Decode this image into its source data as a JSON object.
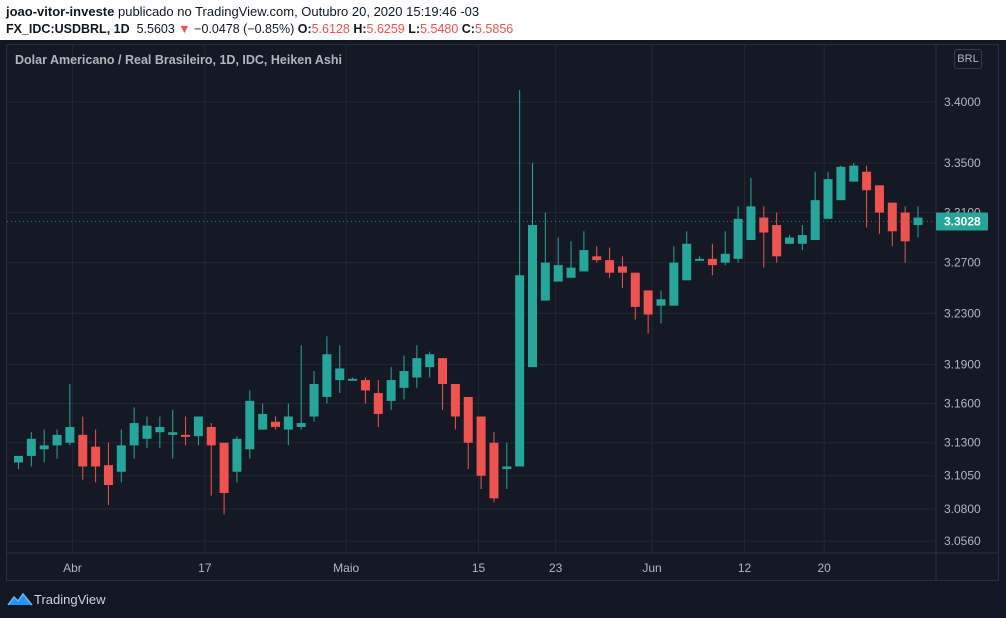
{
  "header": {
    "author": "joao-vitor-investe",
    "published_text": "publicado no TradingView.com, Outubro 20, 2020 15:19:46 -03",
    "symbol": "FX_IDC:USDBRL, 1D",
    "last": "5.5603",
    "change_arrow": "▼",
    "change": "−0.0478 (−0.85%)",
    "o_label": "O:",
    "o_value": "5.6128",
    "h_label": "H:",
    "h_value": "5.6259",
    "l_label": "L:",
    "l_value": "5.5480",
    "c_label": "C:",
    "c_value": "5.5856"
  },
  "legend_text": "Dolar Americano / Real Brasileiro, 1D, IDC, Heiken Ashi",
  "currency_badge": "BRL",
  "footer": {
    "brand": "TradingView"
  },
  "colors": {
    "up": "#26a69a",
    "down": "#ef5350",
    "grid": "#232732",
    "axis_text": "#b2b5be",
    "background": "#131722"
  },
  "chart_data": {
    "type": "candlestick",
    "title": "Dolar Americano / Real Brasileiro, 1D, IDC, Heiken Ashi",
    "y_axis_ticks": [
      "3.4000",
      "3.3500",
      "3.3100",
      "3.2700",
      "3.2300",
      "3.1900",
      "3.1600",
      "3.1300",
      "3.1050",
      "3.0800",
      "3.0560"
    ],
    "x_axis_labels": [
      "Abr",
      "17",
      "Maio",
      "15",
      "23",
      "Jun",
      "12",
      "20"
    ],
    "y_scale": "log",
    "ylim": [
      3.048,
      3.425
    ],
    "last_price_label": "3.3028",
    "candles": [
      {
        "o": 3.115,
        "h": 3.12,
        "l": 3.11,
        "c": 3.12
      },
      {
        "o": 3.12,
        "h": 3.138,
        "l": 3.112,
        "c": 3.133
      },
      {
        "o": 3.125,
        "h": 3.14,
        "l": 3.115,
        "c": 3.128
      },
      {
        "o": 3.128,
        "h": 3.14,
        "l": 3.118,
        "c": 3.136
      },
      {
        "o": 3.13,
        "h": 3.175,
        "l": 3.128,
        "c": 3.142
      },
      {
        "o": 3.136,
        "h": 3.15,
        "l": 3.102,
        "c": 3.112
      },
      {
        "o": 3.127,
        "h": 3.14,
        "l": 3.1,
        "c": 3.112
      },
      {
        "o": 3.113,
        "h": 3.13,
        "l": 3.083,
        "c": 3.098
      },
      {
        "o": 3.108,
        "h": 3.14,
        "l": 3.1,
        "c": 3.128
      },
      {
        "o": 3.128,
        "h": 3.157,
        "l": 3.118,
        "c": 3.145
      },
      {
        "o": 3.133,
        "h": 3.15,
        "l": 3.126,
        "c": 3.143
      },
      {
        "o": 3.138,
        "h": 3.15,
        "l": 3.126,
        "c": 3.142
      },
      {
        "o": 3.136,
        "h": 3.155,
        "l": 3.118,
        "c": 3.138
      },
      {
        "o": 3.136,
        "h": 3.15,
        "l": 3.128,
        "c": 3.135
      },
      {
        "o": 3.135,
        "h": 3.15,
        "l": 3.128,
        "c": 3.15
      },
      {
        "o": 3.142,
        "h": 3.145,
        "l": 3.09,
        "c": 3.128
      },
      {
        "o": 3.13,
        "h": 3.13,
        "l": 3.076,
        "c": 3.092
      },
      {
        "o": 3.108,
        "h": 3.135,
        "l": 3.1,
        "c": 3.133
      },
      {
        "o": 3.125,
        "h": 3.17,
        "l": 3.118,
        "c": 3.162
      },
      {
        "o": 3.14,
        "h": 3.16,
        "l": 3.14,
        "c": 3.152
      },
      {
        "o": 3.146,
        "h": 3.15,
        "l": 3.14,
        "c": 3.142
      },
      {
        "o": 3.14,
        "h": 3.16,
        "l": 3.128,
        "c": 3.15
      },
      {
        "o": 3.142,
        "h": 3.205,
        "l": 3.14,
        "c": 3.145
      },
      {
        "o": 3.15,
        "h": 3.185,
        "l": 3.146,
        "c": 3.175
      },
      {
        "o": 3.165,
        "h": 3.212,
        "l": 3.16,
        "c": 3.198
      },
      {
        "o": 3.178,
        "h": 3.205,
        "l": 3.168,
        "c": 3.187
      },
      {
        "o": 3.178,
        "h": 3.18,
        "l": 3.178,
        "c": 3.179
      },
      {
        "o": 3.178,
        "h": 3.18,
        "l": 3.16,
        "c": 3.17
      },
      {
        "o": 3.168,
        "h": 3.178,
        "l": 3.142,
        "c": 3.152
      },
      {
        "o": 3.162,
        "h": 3.188,
        "l": 3.155,
        "c": 3.178
      },
      {
        "o": 3.172,
        "h": 3.197,
        "l": 3.163,
        "c": 3.185
      },
      {
        "o": 3.18,
        "h": 3.205,
        "l": 3.172,
        "c": 3.195
      },
      {
        "o": 3.188,
        "h": 3.2,
        "l": 3.18,
        "c": 3.198
      },
      {
        "o": 3.195,
        "h": 3.195,
        "l": 3.155,
        "c": 3.175
      },
      {
        "o": 3.175,
        "h": 3.175,
        "l": 3.14,
        "c": 3.15
      },
      {
        "o": 3.165,
        "h": 3.165,
        "l": 3.11,
        "c": 3.13
      },
      {
        "o": 3.15,
        "h": 3.15,
        "l": 3.095,
        "c": 3.105
      },
      {
        "o": 3.13,
        "h": 3.138,
        "l": 3.085,
        "c": 3.088
      },
      {
        "o": 3.11,
        "h": 3.13,
        "l": 3.095,
        "c": 3.112
      },
      {
        "o": 3.112,
        "h": 3.41,
        "l": 3.112,
        "c": 3.26
      },
      {
        "o": 3.188,
        "h": 3.35,
        "l": 3.188,
        "c": 3.3
      },
      {
        "o": 3.24,
        "h": 3.31,
        "l": 3.24,
        "c": 3.27
      },
      {
        "o": 3.255,
        "h": 3.29,
        "l": 3.255,
        "c": 3.268
      },
      {
        "o": 3.258,
        "h": 3.287,
        "l": 3.258,
        "c": 3.266
      },
      {
        "o": 3.263,
        "h": 3.295,
        "l": 3.263,
        "c": 3.28
      },
      {
        "o": 3.275,
        "h": 3.283,
        "l": 3.27,
        "c": 3.272
      },
      {
        "o": 3.272,
        "h": 3.282,
        "l": 3.258,
        "c": 3.262
      },
      {
        "o": 3.267,
        "h": 3.275,
        "l": 3.25,
        "c": 3.262
      },
      {
        "o": 3.262,
        "h": 3.262,
        "l": 3.225,
        "c": 3.235
      },
      {
        "o": 3.248,
        "h": 3.248,
        "l": 3.214,
        "c": 3.229
      },
      {
        "o": 3.236,
        "h": 3.248,
        "l": 3.222,
        "c": 3.241
      },
      {
        "o": 3.236,
        "h": 3.283,
        "l": 3.236,
        "c": 3.27
      },
      {
        "o": 3.256,
        "h": 3.295,
        "l": 3.256,
        "c": 3.285
      },
      {
        "o": 3.272,
        "h": 3.275,
        "l": 3.272,
        "c": 3.273
      },
      {
        "o": 3.273,
        "h": 3.285,
        "l": 3.26,
        "c": 3.268
      },
      {
        "o": 3.27,
        "h": 3.295,
        "l": 3.268,
        "c": 3.277
      },
      {
        "o": 3.273,
        "h": 3.315,
        "l": 3.27,
        "c": 3.305
      },
      {
        "o": 3.288,
        "h": 3.338,
        "l": 3.288,
        "c": 3.315
      },
      {
        "o": 3.306,
        "h": 3.315,
        "l": 3.266,
        "c": 3.294
      },
      {
        "o": 3.3,
        "h": 3.31,
        "l": 3.27,
        "c": 3.275
      },
      {
        "o": 3.285,
        "h": 3.292,
        "l": 3.285,
        "c": 3.29
      },
      {
        "o": 3.285,
        "h": 3.3,
        "l": 3.28,
        "c": 3.292
      },
      {
        "o": 3.288,
        "h": 3.343,
        "l": 3.288,
        "c": 3.32
      },
      {
        "o": 3.305,
        "h": 3.343,
        "l": 3.305,
        "c": 3.337
      },
      {
        "o": 3.32,
        "h": 3.348,
        "l": 3.32,
        "c": 3.347
      },
      {
        "o": 3.335,
        "h": 3.35,
        "l": 3.335,
        "c": 3.348
      },
      {
        "o": 3.343,
        "h": 3.348,
        "l": 3.298,
        "c": 3.328
      },
      {
        "o": 3.332,
        "h": 3.332,
        "l": 3.293,
        "c": 3.31
      },
      {
        "o": 3.318,
        "h": 3.318,
        "l": 3.283,
        "c": 3.295
      },
      {
        "o": 3.31,
        "h": 3.315,
        "l": 3.27,
        "c": 3.287
      },
      {
        "o": 3.3,
        "h": 3.315,
        "l": 3.29,
        "c": 3.306
      }
    ]
  }
}
